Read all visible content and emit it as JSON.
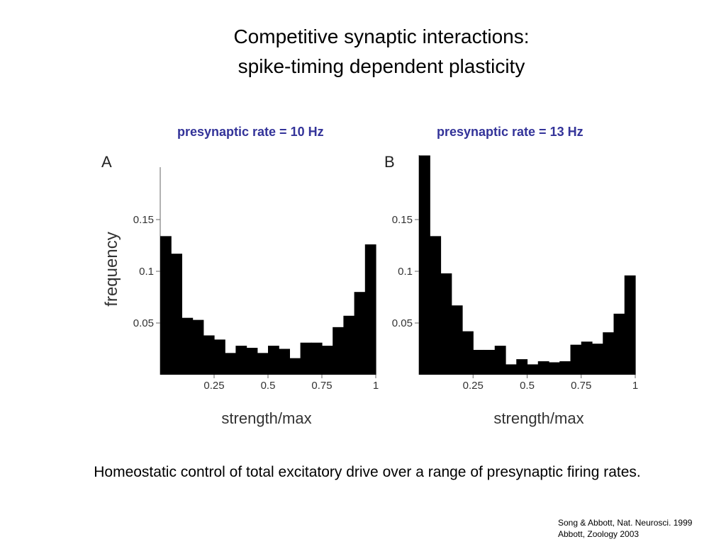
{
  "slide": {
    "title_line1": "Competitive synaptic interactions:",
    "title_line2": "spike-timing dependent plasticity",
    "caption": "Homeostatic control of total excitatory drive over a range of presynaptic firing rates.",
    "references": [
      "Song & Abbott, Nat. Neurosci. 1999",
      "Abbott, Zoology 2003"
    ],
    "heading_color": "#333399"
  },
  "chart_data": [
    {
      "type": "bar",
      "panel_label": "A",
      "heading": "presynaptic rate = 10 Hz",
      "xlabel": "strength/max",
      "ylabel": "frequency",
      "xlim": [
        0,
        1
      ],
      "ylim": [
        0,
        0.2
      ],
      "xticks": [
        0.25,
        0.5,
        0.75,
        1
      ],
      "xtick_labels": [
        "0.25",
        "0.5",
        "0.75",
        "1"
      ],
      "yticks": [
        0.05,
        0.1,
        0.15
      ],
      "ytick_labels": [
        "0.05",
        "0.1",
        "0.15"
      ],
      "bin_width": 0.05,
      "values": [
        0.134,
        0.117,
        0.055,
        0.053,
        0.038,
        0.034,
        0.021,
        0.028,
        0.026,
        0.021,
        0.028,
        0.025,
        0.016,
        0.031,
        0.031,
        0.028,
        0.046,
        0.057,
        0.08,
        0.126
      ]
    },
    {
      "type": "bar",
      "panel_label": "B",
      "heading": "presynaptic rate = 13 Hz",
      "xlabel": "strength/max",
      "ylabel": "",
      "xlim": [
        0,
        1
      ],
      "ylim": [
        0,
        0.2
      ],
      "xticks": [
        0.25,
        0.5,
        0.75,
        1
      ],
      "xtick_labels": [
        "0.25",
        "0.5",
        "0.75",
        "1"
      ],
      "yticks": [
        0.05,
        0.1,
        0.15
      ],
      "ytick_labels": [
        "0.05",
        "0.1",
        "0.15"
      ],
      "bin_width": 0.05,
      "values": [
        0.212,
        0.134,
        0.098,
        0.067,
        0.042,
        0.024,
        0.024,
        0.028,
        0.01,
        0.015,
        0.01,
        0.013,
        0.012,
        0.013,
        0.029,
        0.032,
        0.03,
        0.041,
        0.059,
        0.096
      ]
    }
  ]
}
